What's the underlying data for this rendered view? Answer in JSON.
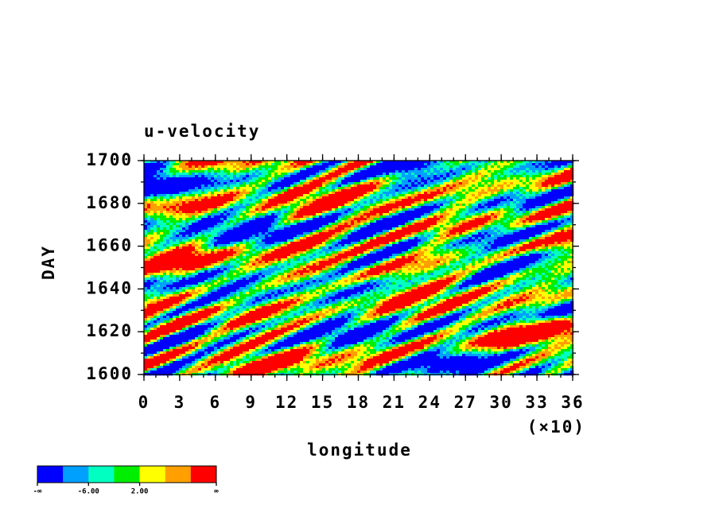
{
  "chart_data": {
    "type": "contour",
    "title": "u-velocity",
    "x_label": "longitude",
    "x_scale_label": "(×10)",
    "y_label": "DAY",
    "xlim": [
      0,
      36
    ],
    "xticks": [
      0,
      3,
      6,
      9,
      12,
      15,
      18,
      21,
      24,
      27,
      30,
      33,
      36
    ],
    "ylim": [
      1600,
      1700
    ],
    "yticks": [
      1600,
      1620,
      1640,
      1660,
      1680,
      1700
    ],
    "colorbar": {
      "colors": [
        "#0000ff",
        "#00a0ff",
        "#00ffc0",
        "#00ee00",
        "#ffff00",
        "#ffa000",
        "#ff0000"
      ],
      "labels": [
        "-∞",
        "-6.00",
        "2.00",
        "∞"
      ]
    }
  }
}
